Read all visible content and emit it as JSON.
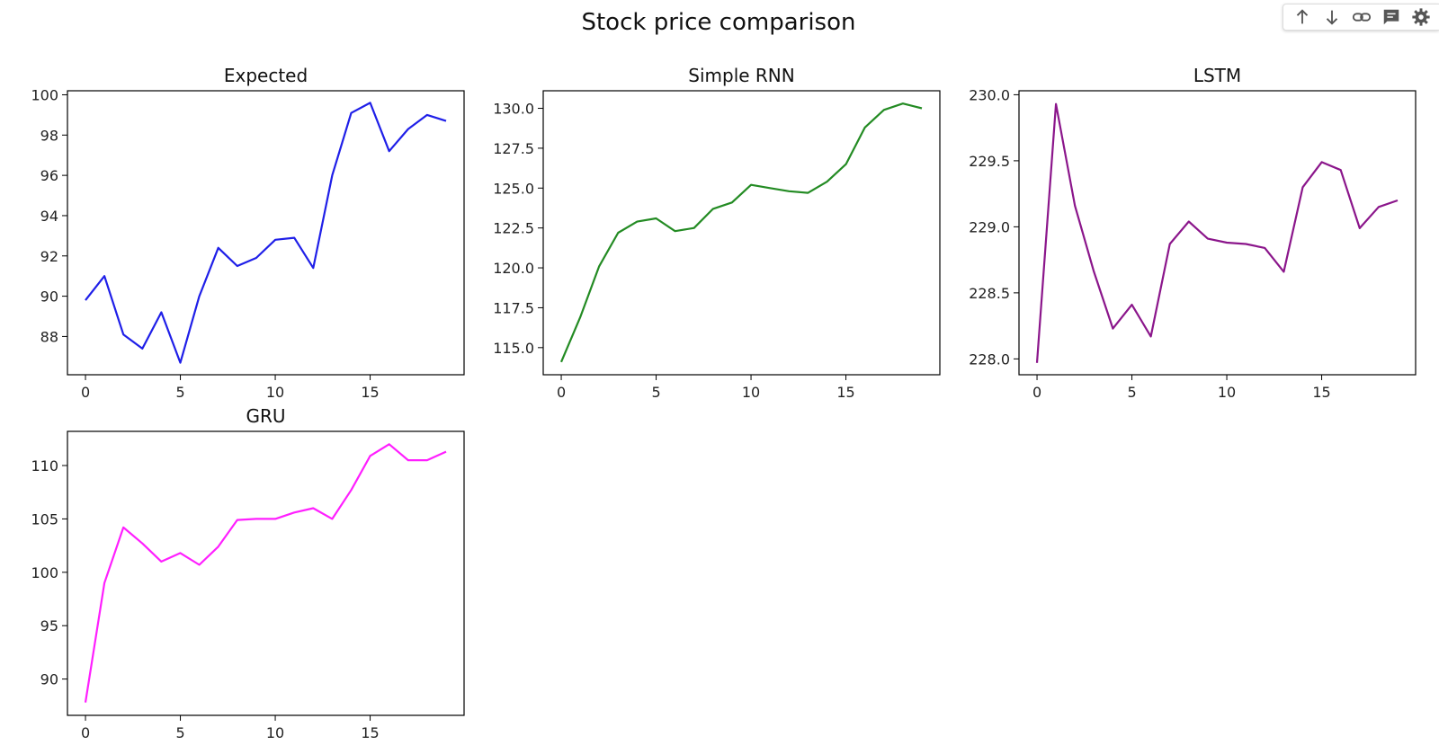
{
  "figure": {
    "title": "Stock price comparison"
  },
  "toolbar": {
    "buttons": [
      {
        "name": "move-up-button",
        "icon": "arrow-up-icon"
      },
      {
        "name": "move-down-button",
        "icon": "arrow-down-icon"
      },
      {
        "name": "link-button",
        "icon": "link-icon"
      },
      {
        "name": "comment-button",
        "icon": "comment-icon"
      },
      {
        "name": "settings-button",
        "icon": "gear-icon"
      }
    ]
  },
  "chart_data": [
    {
      "type": "line",
      "title": "Expected",
      "color": "#1f1fe8",
      "x": [
        0,
        1,
        2,
        3,
        4,
        5,
        6,
        7,
        8,
        9,
        10,
        11,
        12,
        13,
        14,
        15,
        16,
        17,
        18,
        19
      ],
      "series": [
        {
          "values": [
            89.8,
            91.0,
            88.1,
            87.4,
            89.2,
            86.7,
            90.0,
            92.4,
            91.5,
            91.9,
            92.8,
            92.9,
            91.4,
            96.0,
            99.1,
            99.6,
            97.2,
            98.3,
            99.0,
            98.7
          ]
        }
      ],
      "xlim": [
        -0.95,
        19.95
      ],
      "ylim": [
        86.1,
        100.2
      ],
      "xticks": [
        0,
        5,
        10,
        15
      ],
      "yticks": [
        88,
        90,
        92,
        94,
        96,
        98,
        100
      ],
      "ytick_labels": [
        "88",
        "90",
        "92",
        "94",
        "96",
        "98",
        "100"
      ]
    },
    {
      "type": "line",
      "title": "Simple RNN",
      "color": "#238b23",
      "x": [
        0,
        1,
        2,
        3,
        4,
        5,
        6,
        7,
        8,
        9,
        10,
        11,
        12,
        13,
        14,
        15,
        16,
        17,
        18,
        19
      ],
      "series": [
        {
          "values": [
            114.1,
            116.9,
            120.1,
            122.2,
            122.9,
            123.1,
            122.3,
            122.5,
            123.7,
            124.1,
            125.2,
            125.0,
            124.8,
            124.7,
            125.4,
            126.5,
            128.8,
            129.9,
            130.3,
            130.0
          ]
        }
      ],
      "xlim": [
        -0.95,
        19.95
      ],
      "ylim": [
        113.3,
        131.1
      ],
      "xticks": [
        0,
        5,
        10,
        15
      ],
      "yticks": [
        115.0,
        117.5,
        120.0,
        122.5,
        125.0,
        127.5,
        130.0
      ],
      "ytick_labels": [
        "115.0",
        "117.5",
        "120.0",
        "122.5",
        "125.0",
        "127.5",
        "130.0"
      ]
    },
    {
      "type": "line",
      "title": "LSTM",
      "color": "#8b168b",
      "x": [
        0,
        1,
        2,
        3,
        4,
        5,
        6,
        7,
        8,
        9,
        10,
        11,
        12,
        13,
        14,
        15,
        16,
        17,
        18,
        19
      ],
      "series": [
        {
          "values": [
            227.97,
            229.93,
            229.16,
            228.66,
            228.23,
            228.41,
            228.17,
            228.87,
            229.04,
            228.91,
            228.88,
            228.87,
            228.84,
            228.66,
            229.3,
            229.49,
            229.43,
            228.99,
            229.15,
            229.2
          ]
        }
      ],
      "xlim": [
        -0.95,
        19.95
      ],
      "ylim": [
        227.88,
        230.03
      ],
      "xticks": [
        0,
        5,
        10,
        15
      ],
      "yticks": [
        228.0,
        228.5,
        229.0,
        229.5,
        230.0
      ],
      "ytick_labels": [
        "228.0",
        "228.5",
        "229.0",
        "229.5",
        "230.0"
      ]
    },
    {
      "type": "line",
      "title": "GRU",
      "color": "#ff1fff",
      "x": [
        0,
        1,
        2,
        3,
        4,
        5,
        6,
        7,
        8,
        9,
        10,
        11,
        12,
        13,
        14,
        15,
        16,
        17,
        18,
        19
      ],
      "series": [
        {
          "values": [
            87.8,
            99.0,
            104.2,
            102.7,
            101.0,
            101.8,
            100.7,
            102.4,
            104.9,
            105.0,
            105.0,
            105.6,
            106.0,
            105.0,
            107.7,
            110.9,
            112.0,
            110.5,
            110.5,
            111.3
          ]
        }
      ],
      "xlim": [
        -0.95,
        19.95
      ],
      "ylim": [
        86.6,
        113.2
      ],
      "xticks": [
        0,
        5,
        10,
        15
      ],
      "yticks": [
        90,
        95,
        100,
        105,
        110
      ],
      "ytick_labels": [
        "90",
        "95",
        "100",
        "105",
        "110"
      ]
    }
  ]
}
